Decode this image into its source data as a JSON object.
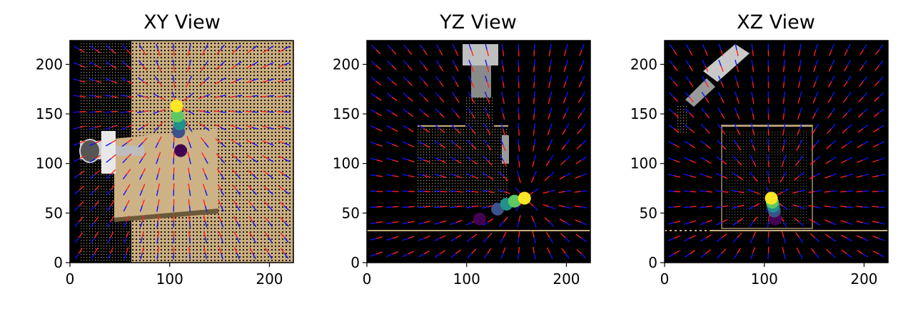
{
  "chart_data": [
    {
      "type": "scatter",
      "title": "XY View",
      "xlabel": "",
      "ylabel": "",
      "xlim": [
        0,
        224
      ],
      "ylim": [
        0,
        224
      ],
      "xticks": [
        0,
        100,
        200
      ],
      "yticks": [
        0,
        50,
        100,
        150,
        200
      ],
      "grid": false,
      "background_image": "depth point-cloud render of robot arm and tan tabletop with vector field arrows",
      "series": [
        {
          "colormap": "viridis",
          "x": [
            111,
            109,
            110,
            108,
            107
          ],
          "y": [
            113,
            132,
            140,
            148,
            158
          ]
        }
      ]
    },
    {
      "type": "scatter",
      "title": "YZ View",
      "xlabel": "",
      "ylabel": "",
      "xlim": [
        0,
        224
      ],
      "ylim": [
        0,
        224
      ],
      "xticks": [
        0,
        100,
        200
      ],
      "yticks": [
        0,
        50,
        100,
        150,
        200
      ],
      "grid": false,
      "background_image": "depth point-cloud render (side) with table block and vector field arrows",
      "series": [
        {
          "colormap": "viridis",
          "x": [
            113,
            131,
            140,
            148,
            158
          ],
          "y": [
            44,
            54,
            59,
            62,
            65
          ]
        }
      ]
    },
    {
      "type": "scatter",
      "title": "XZ View",
      "xlabel": "",
      "ylabel": "",
      "xlim": [
        0,
        224
      ],
      "ylim": [
        0,
        224
      ],
      "xticks": [
        0,
        100,
        200
      ],
      "yticks": [
        0,
        50,
        100,
        150,
        200
      ],
      "grid": false,
      "background_image": "depth point-cloud render (front) with table block and vector field arrows",
      "series": [
        {
          "colormap": "viridis",
          "x": [
            111,
            110,
            109,
            108,
            107
          ],
          "y": [
            44,
            52,
            57,
            61,
            65
          ]
        }
      ]
    }
  ],
  "colors": {
    "background": "#000000",
    "table_tan": "#c8ad7f",
    "arrow_blue": "#1010ff",
    "arrow_red": "#ff2020",
    "viridis": [
      "#440154",
      "#3b528b",
      "#21918c",
      "#5ec962",
      "#fde725"
    ]
  }
}
